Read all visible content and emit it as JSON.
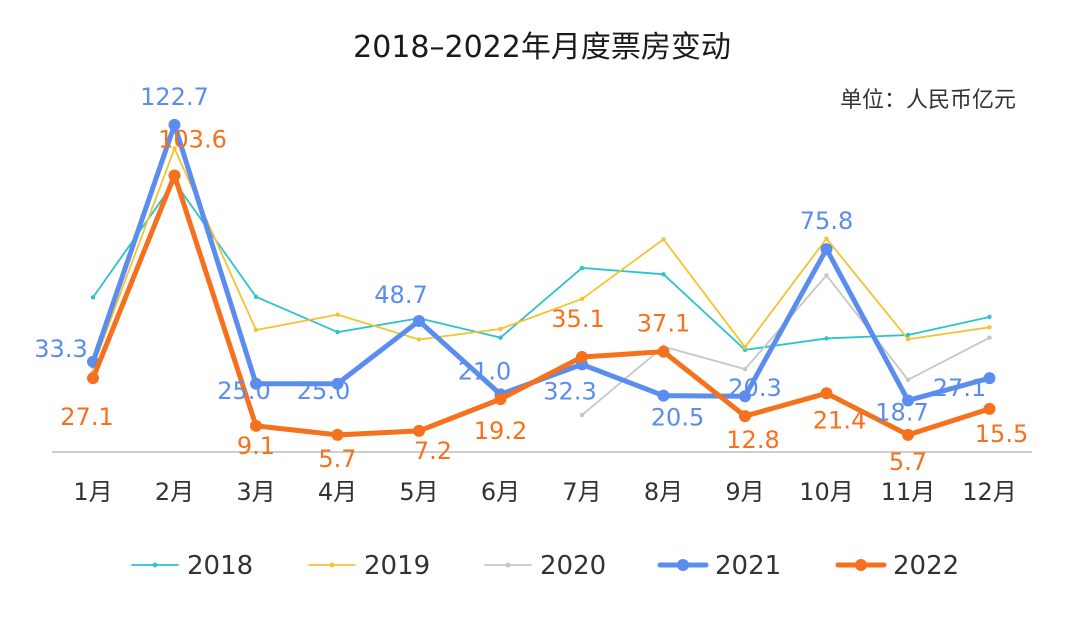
{
  "chart_data": {
    "type": "line",
    "title": "2018–2022年月度票房变动",
    "unit_label": "单位：人民币亿元",
    "xlabel": "",
    "ylabel": "",
    "ylim": [
      0,
      130
    ],
    "grid": false,
    "legend_position": "bottom",
    "categories": [
      "1月",
      "2月",
      "3月",
      "4月",
      "5月",
      "6月",
      "7月",
      "8月",
      "9月",
      "10月",
      "11月",
      "12月"
    ],
    "series": [
      {
        "name": "2018",
        "color": "#2bc4cc",
        "style": "thin",
        "values": [
          57.6,
          101.2,
          57.8,
          44.5,
          49.7,
          42.4,
          68.7,
          66.3,
          37.8,
          42.1,
          43.4,
          50.2
        ],
        "labels": []
      },
      {
        "name": "2019",
        "color": "#f5c232",
        "style": "thin",
        "values": [
          31.4,
          113.8,
          45.3,
          51.1,
          41.7,
          45.7,
          57.0,
          79.5,
          38.8,
          79.8,
          41.8,
          46.3
        ],
        "labels": []
      },
      {
        "name": "2020",
        "color": "#c7c7c7",
        "style": "thin",
        "values": [
          29.5,
          null,
          null,
          null,
          null,
          null,
          13.2,
          39.0,
          30.5,
          65.9,
          26.5,
          42.4
        ],
        "labels": []
      },
      {
        "name": "2021",
        "color": "#5b8def",
        "style": "thick",
        "values": [
          33.3,
          122.7,
          25.0,
          25.0,
          48.7,
          21.0,
          32.3,
          20.5,
          20.3,
          75.8,
          18.7,
          27.1
        ],
        "labels": [
          "33.3",
          "122.7",
          "25.0",
          "25.0",
          "48.7",
          "21.0",
          "32.3",
          "20.5",
          "20.3",
          "75.8",
          "18.7",
          "27.1"
        ]
      },
      {
        "name": "2022",
        "color": "#f5711c",
        "style": "thick",
        "values": [
          27.1,
          103.6,
          9.1,
          5.7,
          7.2,
          19.2,
          35.1,
          37.1,
          12.8,
          21.4,
          5.7,
          15.5
        ],
        "labels": [
          "27.1",
          "103.6",
          "9.1",
          "5.7",
          "7.2",
          "19.2",
          "35.1",
          "37.1",
          "12.8",
          "21.4",
          "5.7",
          "15.5"
        ]
      }
    ]
  }
}
